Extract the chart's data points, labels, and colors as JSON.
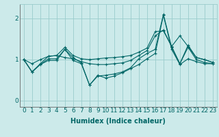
{
  "bg_color": "#cceaea",
  "line_color": "#006666",
  "grid_color": "#99cccc",
  "xlabel": "Humidex (Indice chaleur)",
  "xlabel_fontsize": 7,
  "tick_fontsize": 6.5,
  "xlim": [
    -0.5,
    23.5
  ],
  "ylim": [
    -0.15,
    2.35
  ],
  "yticks": [
    0,
    1,
    2
  ],
  "xticks": [
    0,
    1,
    2,
    3,
    4,
    5,
    6,
    7,
    8,
    9,
    10,
    11,
    12,
    13,
    14,
    15,
    16,
    17,
    18,
    19,
    20,
    21,
    22,
    23
  ],
  "series": [
    [
      1.0,
      0.7,
      0.9,
      1.08,
      1.1,
      1.3,
      1.1,
      1.02,
      1.0,
      1.02,
      1.04,
      1.05,
      1.07,
      1.1,
      1.18,
      1.28,
      1.68,
      1.7,
      1.32,
      0.9,
      1.35,
      1.05,
      1.0,
      0.93
    ],
    [
      1.0,
      0.9,
      1.0,
      1.08,
      1.1,
      1.05,
      1.02,
      0.95,
      0.9,
      0.88,
      0.88,
      0.9,
      0.92,
      0.98,
      1.1,
      1.22,
      1.58,
      1.72,
      1.32,
      1.58,
      1.32,
      1.05,
      1.0,
      0.93
    ],
    [
      1.0,
      0.7,
      0.88,
      1.02,
      1.02,
      1.25,
      1.05,
      0.92,
      0.38,
      0.6,
      0.62,
      0.65,
      0.7,
      0.8,
      1.02,
      1.15,
      1.25,
      2.1,
      1.3,
      0.9,
      1.3,
      1.0,
      0.93,
      0.9
    ],
    [
      1.0,
      0.7,
      0.88,
      0.98,
      0.98,
      1.25,
      0.98,
      0.9,
      0.38,
      0.62,
      0.55,
      0.6,
      0.68,
      0.78,
      0.88,
      1.02,
      1.15,
      2.08,
      1.25,
      0.88,
      1.02,
      0.95,
      0.9,
      0.9
    ]
  ]
}
